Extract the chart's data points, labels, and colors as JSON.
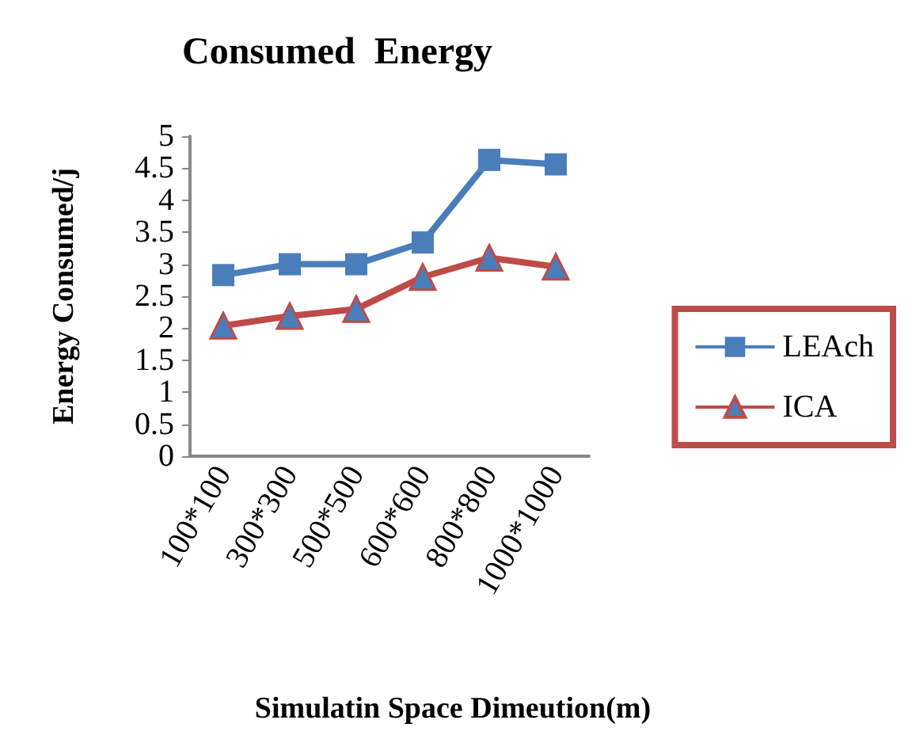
{
  "chart_data": {
    "type": "line",
    "title": "Consumed  Energy",
    "xlabel": "Simulatin Space Dimeution(m)",
    "ylabel": "Energy Consumed/j",
    "categories": [
      "100*100",
      "300*300",
      "500*500",
      "600*600",
      "800*800",
      "1000*1000"
    ],
    "series": [
      {
        "name": "LEAch",
        "color": "#4a7ebb",
        "marker": "square",
        "values": [
          2.83,
          3.0,
          3.0,
          3.34,
          4.63,
          4.56
        ]
      },
      {
        "name": "ICA",
        "color": "#be4b48",
        "marker": "triangle",
        "values": [
          2.04,
          2.19,
          2.3,
          2.8,
          3.1,
          2.96
        ]
      }
    ],
    "ylim": [
      0,
      5
    ],
    "yticks": [
      0,
      0.5,
      1,
      1.5,
      2,
      2.5,
      3,
      3.5,
      4,
      4.5,
      5
    ],
    "grid": false,
    "legend": "right"
  }
}
